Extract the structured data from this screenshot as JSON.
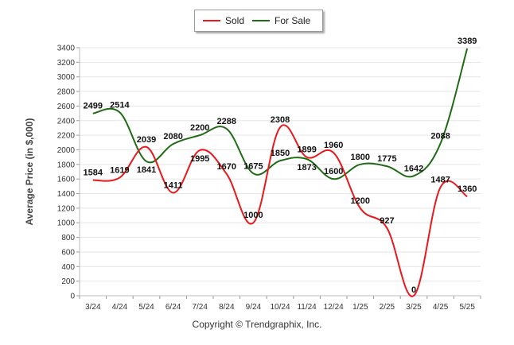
{
  "chart_data": {
    "type": "line",
    "categories": [
      "3/24",
      "4/24",
      "5/24",
      "6/24",
      "7/24",
      "8/24",
      "9/24",
      "10/24",
      "11/24",
      "12/24",
      "1/25",
      "2/25",
      "3/25",
      "4/25",
      "5/25"
    ],
    "series": [
      {
        "name": "Sold",
        "color": "#e8191b",
        "values": [
          1584,
          1619,
          2039,
          1411,
          1995,
          1670,
          1000,
          2308,
          1899,
          1960,
          1200,
          927,
          0,
          1487,
          1360
        ]
      },
      {
        "name": "For Sale",
        "color": "#1e6b13",
        "values": [
          2499,
          2514,
          1841,
          2080,
          2200,
          2288,
          1675,
          1850,
          1873,
          1600,
          1800,
          1775,
          1642,
          2088,
          3389
        ]
      }
    ],
    "ylabel": "Average Price (in $,000)",
    "xlabel": "",
    "ylim": [
      0,
      3400
    ],
    "yticks": [
      0,
      200,
      400,
      600,
      800,
      1000,
      1200,
      1400,
      1600,
      1800,
      2000,
      2200,
      2400,
      2600,
      2800,
      3000,
      3200,
      3400
    ],
    "grid": true,
    "legend_position": "top-center"
  },
  "legend": {
    "sold_label": "Sold",
    "for_sale_label": "For Sale"
  },
  "footer": {
    "copyright": "Copyright © Trendgraphix, Inc."
  }
}
